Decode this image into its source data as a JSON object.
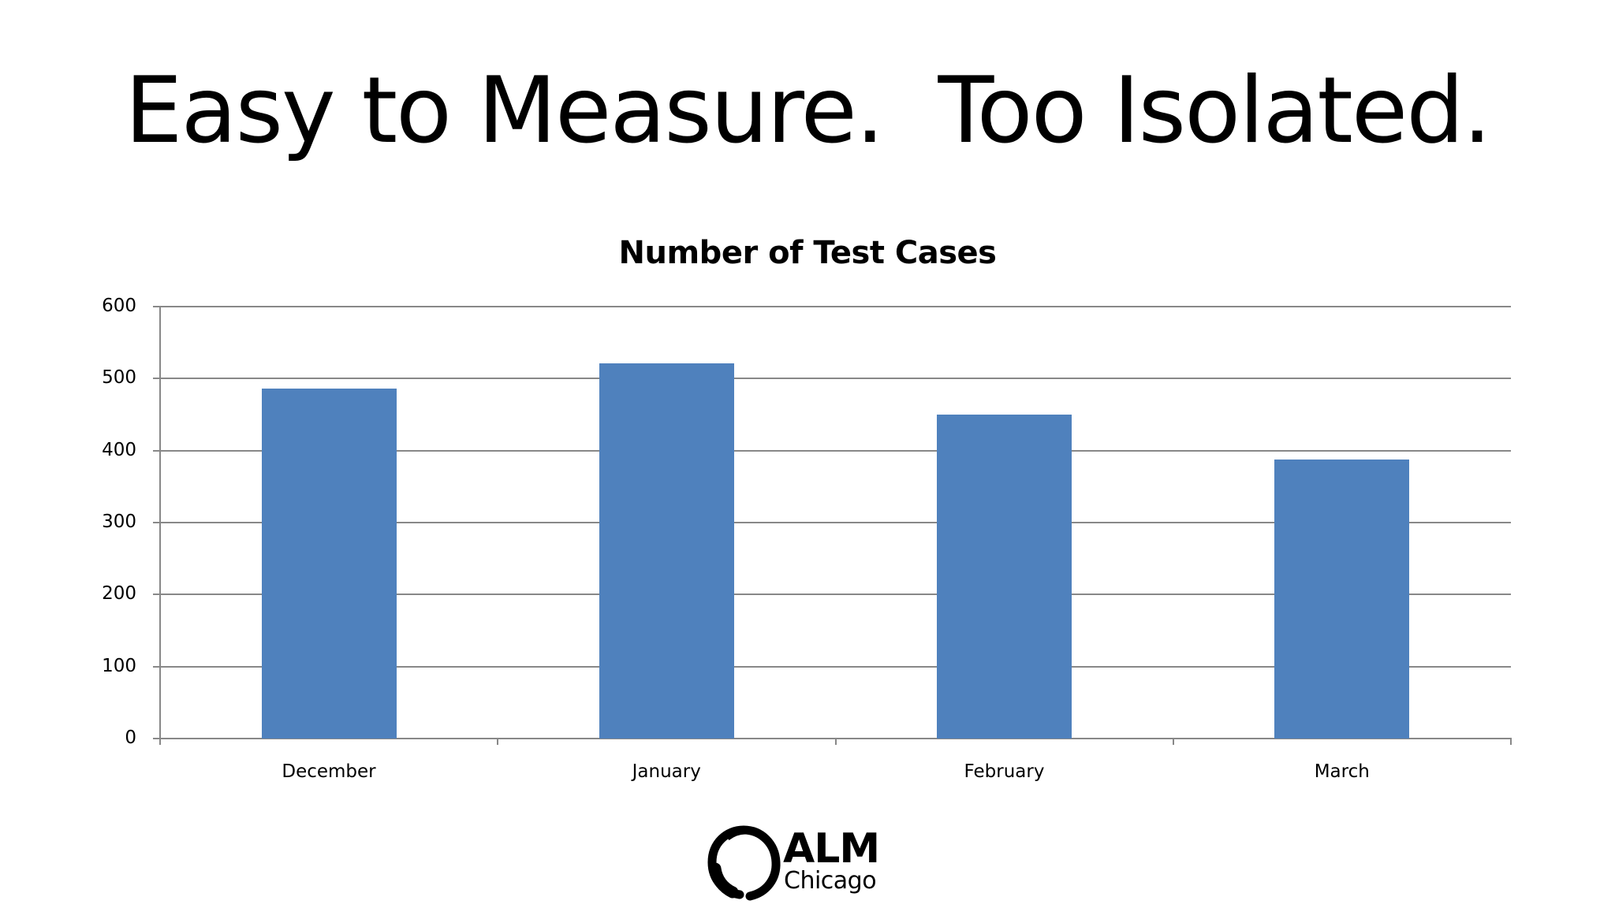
{
  "slide": {
    "title": "Easy to Measure.  Too Isolated."
  },
  "logo": {
    "line1": "ALM",
    "line2": "Chicago",
    "icon": "brush-circle-icon"
  },
  "colors": {
    "bar": "#4F81BD",
    "axis": "#888888",
    "text": "#000000"
  },
  "chart_data": {
    "type": "bar",
    "title": "Number of Test Cases",
    "categories": [
      "December",
      "January",
      "February",
      "March"
    ],
    "values": [
      486,
      521,
      450,
      388
    ],
    "series": [
      {
        "name": "Number of Test Cases",
        "values": [
          486,
          521,
          450,
          388
        ]
      }
    ],
    "xlabel": "",
    "ylabel": "",
    "ylim": [
      0,
      600
    ],
    "yticks": [
      0,
      100,
      200,
      300,
      400,
      500,
      600
    ],
    "grid": true,
    "legend": "none"
  }
}
